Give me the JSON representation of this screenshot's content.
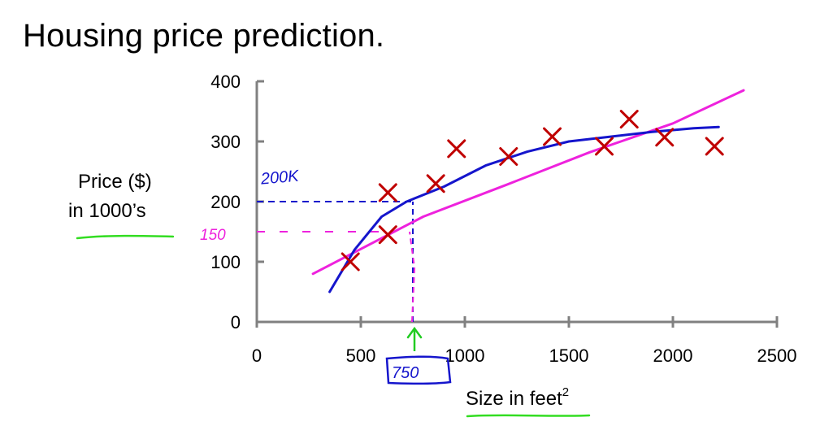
{
  "title": "Housing price prediction.",
  "chart_data": {
    "type": "scatter",
    "xlabel": "Size in feet",
    "xlabel_superscript": "2",
    "ylabel_line1": "Price ($)",
    "ylabel_line2": "in 1000’s",
    "xlim": [
      0,
      2500
    ],
    "ylim": [
      0,
      400
    ],
    "x_ticks": [
      0,
      500,
      1000,
      1500,
      2000,
      2500
    ],
    "y_ticks": [
      0,
      100,
      200,
      300,
      400
    ],
    "grid": false,
    "points": [
      {
        "x": 450,
        "y": 100
      },
      {
        "x": 630,
        "y": 145
      },
      {
        "x": 630,
        "y": 215
      },
      {
        "x": 860,
        "y": 230
      },
      {
        "x": 960,
        "y": 288
      },
      {
        "x": 1210,
        "y": 275
      },
      {
        "x": 1420,
        "y": 308
      },
      {
        "x": 1670,
        "y": 292
      },
      {
        "x": 1790,
        "y": 337
      },
      {
        "x": 1960,
        "y": 307
      },
      {
        "x": 2200,
        "y": 292
      }
    ],
    "fits": [
      {
        "kind": "straight",
        "color": "#ee22dd",
        "points": [
          [
            270,
            80
          ],
          [
            800,
            175
          ],
          [
            1200,
            228
          ],
          [
            1600,
            282
          ],
          [
            2000,
            330
          ],
          [
            2340,
            385
          ]
        ]
      },
      {
        "kind": "curve",
        "color": "#1515cc",
        "points": [
          [
            350,
            50
          ],
          [
            470,
            120
          ],
          [
            600,
            175
          ],
          [
            720,
            200
          ],
          [
            900,
            225
          ],
          [
            1100,
            260
          ],
          [
            1300,
            283
          ],
          [
            1500,
            300
          ],
          [
            1700,
            308
          ],
          [
            1900,
            316
          ],
          [
            2100,
            322
          ],
          [
            2220,
            324
          ]
        ]
      }
    ],
    "annotations": [
      {
        "text": "200K",
        "color": "#1515cc"
      },
      {
        "text": "150",
        "color": "#ee22dd"
      },
      {
        "text": "750",
        "color": "#1515cc"
      }
    ]
  },
  "colors": {
    "axis": "#808080",
    "marker": "#c00000",
    "straight_fit": "#ee22dd",
    "curve_fit": "#1515cc",
    "underline": "#33dd22",
    "arrow": "#22cc22"
  }
}
